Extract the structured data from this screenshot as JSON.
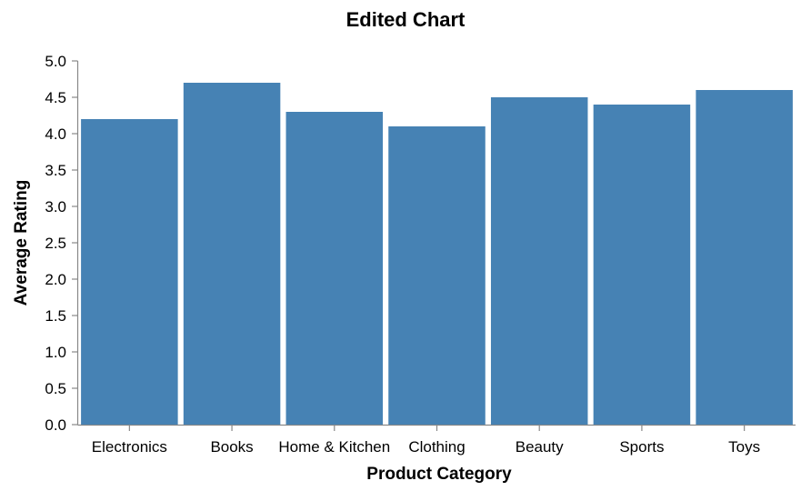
{
  "chart_data": {
    "type": "bar",
    "title": "Edited Chart",
    "xlabel": "Product Category",
    "ylabel": "Average Rating",
    "categories": [
      "Electronics",
      "Books",
      "Home & Kitchen",
      "Clothing",
      "Beauty",
      "Sports",
      "Toys"
    ],
    "values": [
      4.2,
      4.7,
      4.3,
      4.1,
      4.5,
      4.4,
      4.6
    ],
    "ylim": [
      0,
      5
    ],
    "yticks": [
      "0.0",
      "0.5",
      "1.0",
      "1.5",
      "2.0",
      "2.5",
      "3.0",
      "3.5",
      "4.0",
      "4.5",
      "5.0"
    ],
    "grid": false,
    "bar_color": "#4682b4",
    "axis_color": "#888888"
  }
}
